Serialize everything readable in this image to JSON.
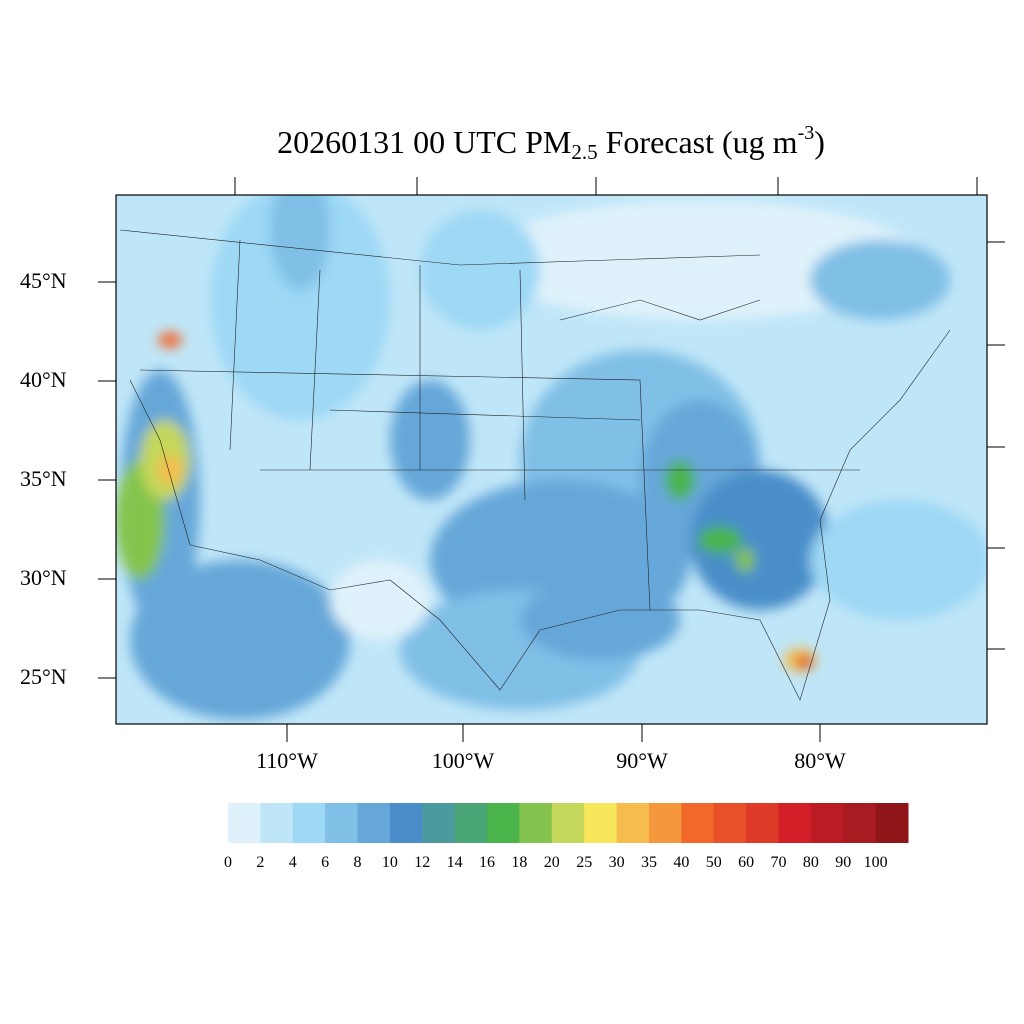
{
  "title": {
    "prefix": "20260131 00 UTC PM",
    "subscript": "2.5",
    "middle": " Forecast (ug m",
    "superscript": "-3",
    "suffix": ")"
  },
  "map": {
    "projection": "lambert-conformal",
    "region": "CONUS",
    "lat_labels": [
      "45°N",
      "40°N",
      "35°N",
      "30°N",
      "25°N"
    ],
    "lon_labels": [
      "110°W",
      "100°W",
      "90°W",
      "80°W"
    ],
    "background_color": "#bfe6f8"
  },
  "colorbar": {
    "labels": [
      "0",
      "2",
      "4",
      "6",
      "8",
      "10",
      "12",
      "14",
      "16",
      "18",
      "20",
      "25",
      "30",
      "35",
      "40",
      "50",
      "60",
      "70",
      "80",
      "90",
      "100"
    ],
    "colors": [
      "#dff2fb",
      "#bfe6f8",
      "#9dd8f5",
      "#80bfe6",
      "#66a7d9",
      "#4a8ec9",
      "#4a9a9e",
      "#4aa676",
      "#4bb44a",
      "#84c44e",
      "#c4d75a",
      "#f7e55c",
      "#f6bc4e",
      "#f5973c",
      "#f2682b",
      "#e8502a",
      "#dd3a27",
      "#d21f27",
      "#bb1c24",
      "#a81b21",
      "#8f1519"
    ]
  }
}
